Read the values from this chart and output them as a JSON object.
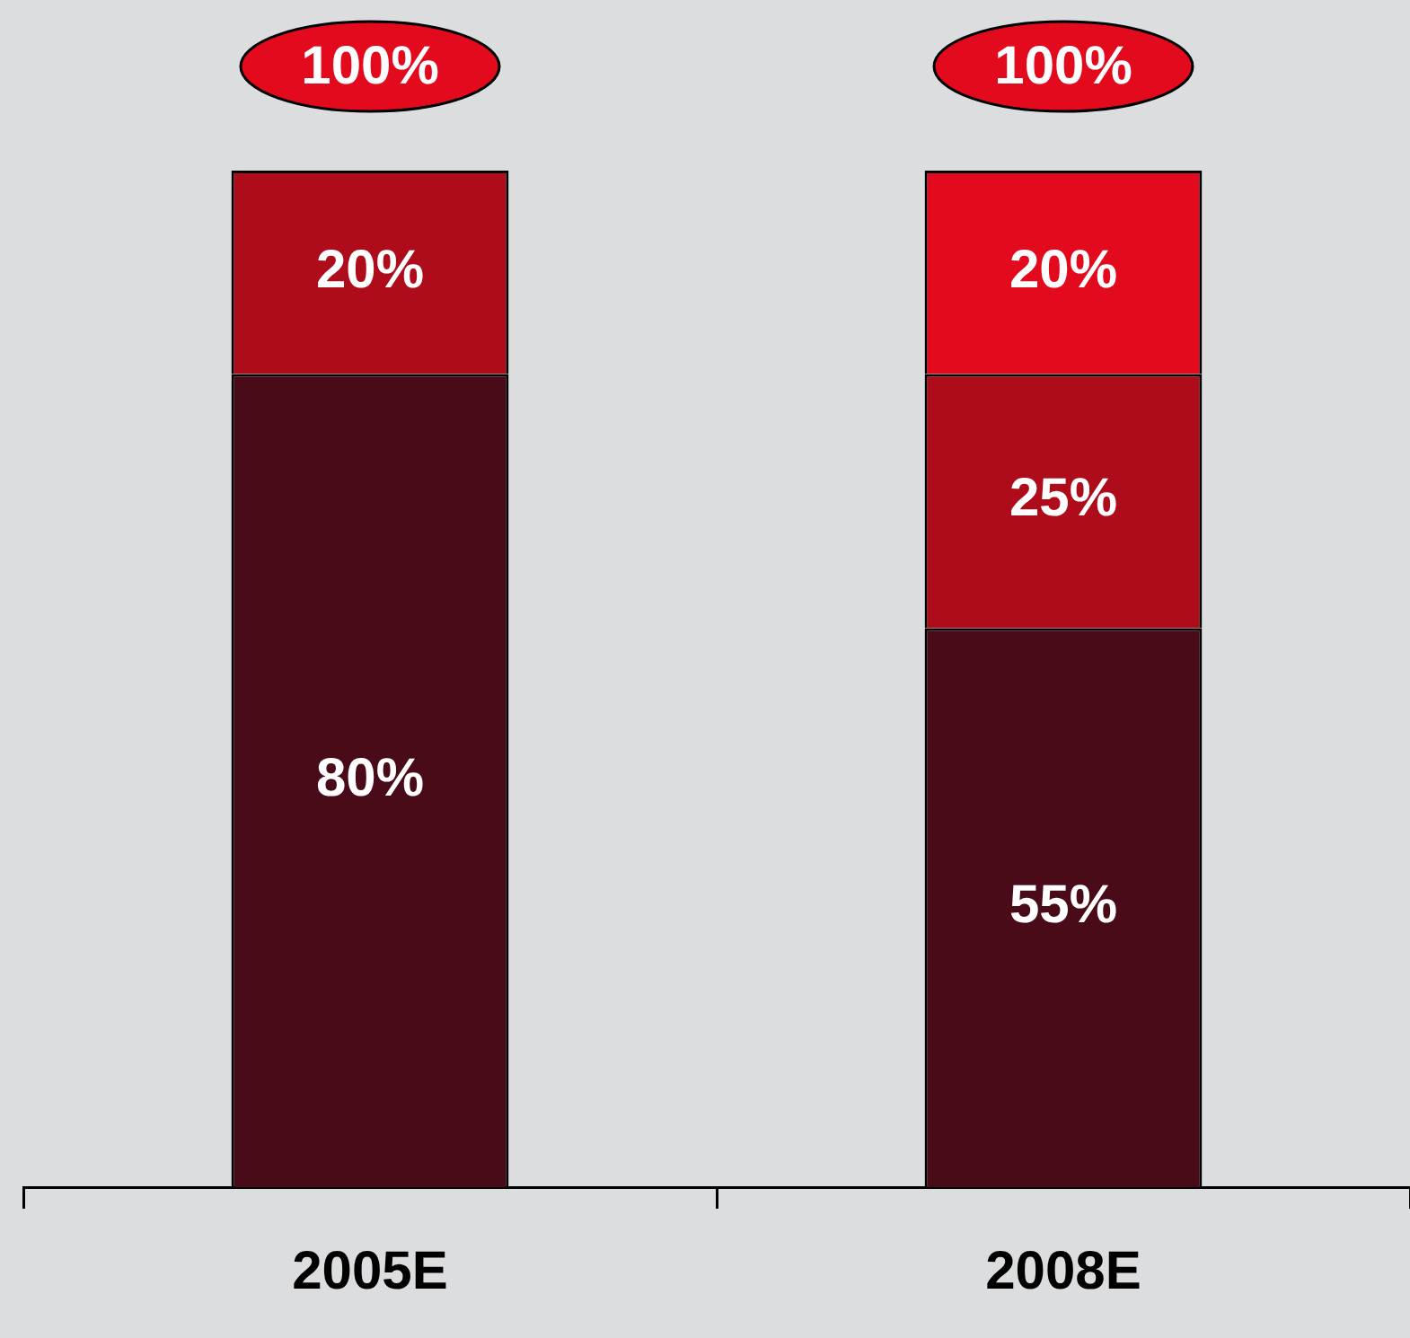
{
  "chart_data": {
    "type": "bar",
    "stacked": true,
    "categories": [
      "2005E",
      "2008E"
    ],
    "series": [
      {
        "color": "#4a0b18",
        "values": [
          80,
          55
        ],
        "value_labels": [
          "80%",
          "55%"
        ]
      },
      {
        "color": "#ae0c1a",
        "values": [
          20,
          25
        ],
        "value_labels": [
          "20%",
          "25%"
        ]
      },
      {
        "color": "#e20a1c",
        "values": [
          null,
          20
        ],
        "value_labels": [
          null,
          "20%"
        ]
      }
    ],
    "totals": [
      "100%",
      "100%"
    ],
    "grid": false,
    "legend": false
  }
}
